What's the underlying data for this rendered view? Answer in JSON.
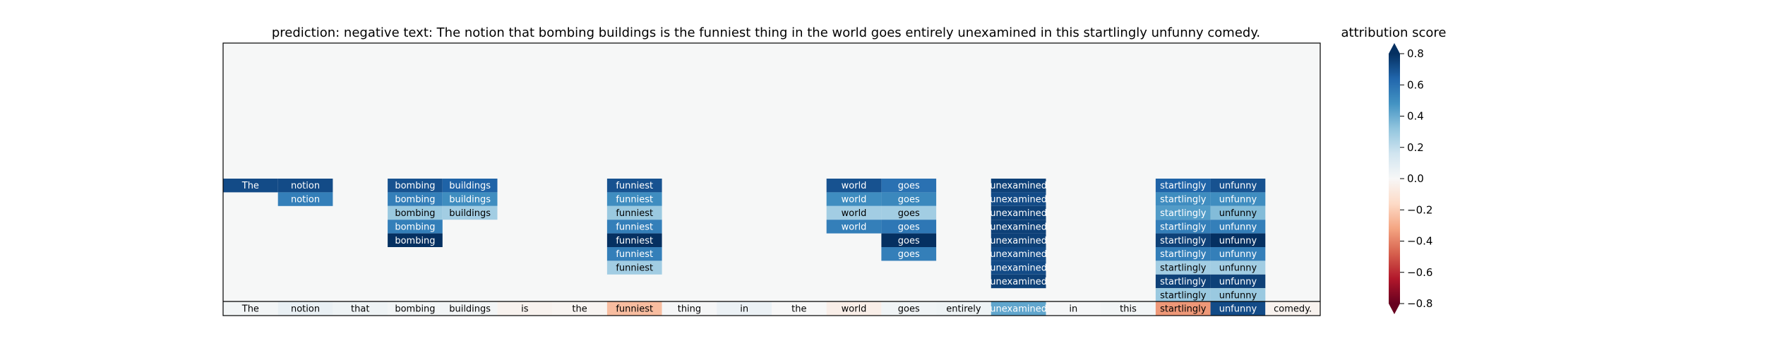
{
  "chart_data": {
    "type": "heatmap",
    "title": "prediction:  negative     text:  The notion that bombing buildings is the funniest thing in the world goes entirely unexamined in this startlingly unfunny comedy.",
    "colorbar_label": "attribution score",
    "colorbar_range": [
      -0.8,
      0.8
    ],
    "colorbar_ticks": [
      "0.8",
      "0.6",
      "0.4",
      "0.2",
      "0.0",
      "−0.2",
      "−0.4",
      "−0.6",
      "−0.8"
    ],
    "colormap": "RdBu",
    "colormap_stops": [
      "#67001f",
      "#b2182b",
      "#d6604d",
      "#f4a582",
      "#fddbc7",
      "#f7f7f7",
      "#d1e5f0",
      "#92c5de",
      "#4393c3",
      "#2166ac",
      "#053061"
    ],
    "tokens": [
      "The",
      "notion",
      "that",
      "bombing",
      "buildings",
      "is",
      "the",
      "funniest",
      "thing",
      "in",
      "the",
      "world",
      "goes",
      "entirely",
      "unexamined",
      "in",
      "this",
      "startlingly",
      "unfunny",
      "comedy."
    ],
    "token_scores": [
      0.02,
      0.06,
      0.04,
      0.02,
      0.02,
      -0.03,
      -0.02,
      -0.25,
      0.01,
      0.05,
      0.0,
      -0.05,
      0.03,
      0.04,
      0.42,
      0.01,
      0.02,
      -0.35,
      0.72,
      -0.03
    ],
    "rows": [
      {
        "The": 0.72,
        "notion": 0.72,
        "bombing": 0.7,
        "buildings": 0.65,
        "funniest": 0.7,
        "world": 0.7,
        "goes": 0.6,
        "unexamined": 0.75,
        "startlingly": 0.65,
        "unfunny": 0.7
      },
      {
        "notion": 0.55,
        "bombing": 0.55,
        "buildings": 0.5,
        "funniest": 0.5,
        "world": 0.5,
        "goes": 0.52,
        "unexamined": 0.72,
        "startlingly": 0.5,
        "unfunny": 0.5
      },
      {
        "bombing": 0.3,
        "buildings": 0.28,
        "funniest": 0.3,
        "world": 0.28,
        "goes": 0.28,
        "unexamined": 0.75,
        "startlingly": 0.45,
        "unfunny": 0.35
      },
      {
        "bombing": 0.55,
        "funniest": 0.55,
        "world": 0.55,
        "goes": 0.58,
        "unexamined": 0.75,
        "startlingly": 0.55,
        "unfunny": 0.55
      },
      {
        "bombing": 0.85,
        "funniest": 0.85,
        "goes": 0.82,
        "unexamined": 0.75,
        "startlingly": 0.75,
        "unfunny": 0.8
      },
      {
        "funniest": 0.55,
        "goes": 0.55,
        "unexamined": 0.72,
        "startlingly": 0.55,
        "unfunny": 0.55
      },
      {
        "funniest": 0.28,
        "unexamined": 0.72,
        "startlingly": 0.28,
        "unfunny": 0.28
      },
      {
        "unexamined": 0.75,
        "startlingly": 0.75,
        "unfunny": 0.75
      },
      {
        "startlingly": 0.3,
        "unfunny": 0.3
      }
    ]
  }
}
